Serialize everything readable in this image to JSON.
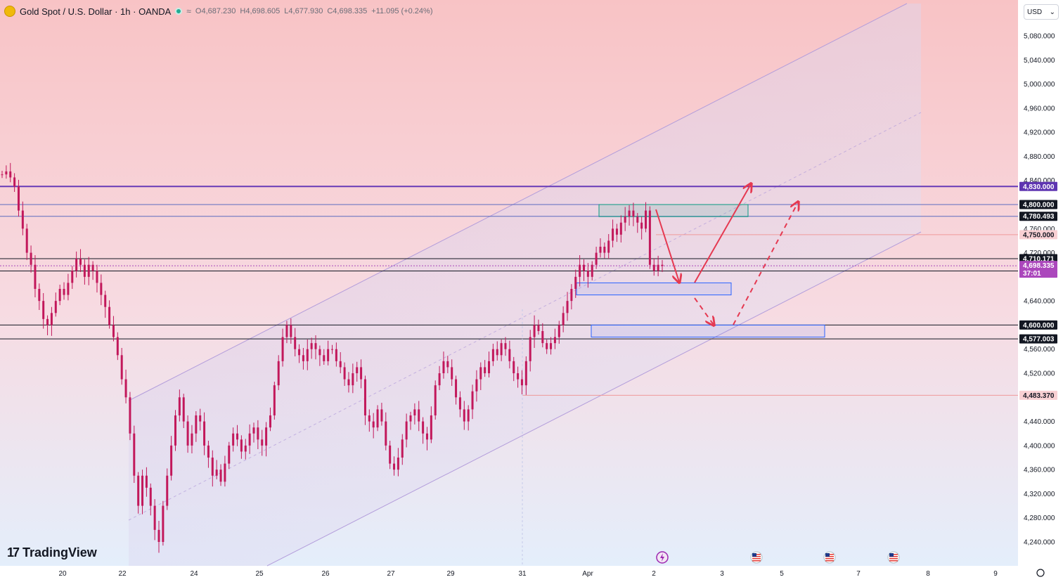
{
  "header": {
    "title": "Gold Spot / U.S. Dollar · 1h · OANDA",
    "o_label": "O",
    "o_value": "4,687.230",
    "h_label": "H",
    "h_value": "4,698.605",
    "l_label": "L",
    "l_value": "4,677.930",
    "c_label": "C",
    "c_value": "4,698.335",
    "change": "+11.095 (+0.24%)",
    "wave_glyph": "≈"
  },
  "currency_select": {
    "value": "USD",
    "chevron": "⌄"
  },
  "brand": {
    "logo_glyph": "17",
    "name": "TradingView"
  },
  "colors": {
    "candle": "#c2185b",
    "channel": "#b39ddb",
    "resistance_line": "#673ab7",
    "level_line": "#131722",
    "box_blue": "#2962ff",
    "box_green": "#089981",
    "arrow": "#e53951",
    "bg_top": "#f7c6c6",
    "bg_bottom": "#e8f0fb",
    "price_tag": "#131722",
    "pink_tag": "#f8d0d3",
    "current_tag": "#ab47bc"
  },
  "chart_data": {
    "type": "candlestick",
    "symbol": "XAUUSD",
    "timeframe": "1h",
    "y_ticks": [
      "5,080.000",
      "5,040.000",
      "5,000.000",
      "4,960.000",
      "4,920.000",
      "4,880.000",
      "4,840.000",
      "4,760.000",
      "4,720.000",
      "4,640.000",
      "4,560.000",
      "4,520.000",
      "4,440.000",
      "4,400.000",
      "4,360.000",
      "4,320.000",
      "4,280.000",
      "4,240.000"
    ],
    "ylim": [
      4215,
      5105
    ],
    "x_ticks": [
      "20",
      "22",
      "24",
      "25",
      "26",
      "27",
      "29",
      "31",
      "Apr",
      "2",
      "3",
      "5",
      "7",
      "8",
      "9"
    ],
    "price_tags": [
      {
        "label": "4,830.000",
        "value": 4830,
        "style": "purple"
      },
      {
        "label": "4,800.000",
        "value": 4800,
        "style": "dark"
      },
      {
        "label": "4,780.493",
        "value": 4780.493,
        "style": "dark"
      },
      {
        "label": "4,750.000",
        "value": 4750,
        "style": "pink"
      },
      {
        "label": "4,710.171",
        "value": 4710.171,
        "style": "dark"
      },
      {
        "label": "4,689.759",
        "value": 4689.759,
        "style": "dark"
      },
      {
        "label": "4,600.000",
        "value": 4600,
        "style": "dark"
      },
      {
        "label": "4,577.003",
        "value": 4577.003,
        "style": "dark"
      },
      {
        "label": "4,483.370",
        "value": 4483.37,
        "style": "pink"
      }
    ],
    "current_price": {
      "label": "4,698.335",
      "countdown": "37:01",
      "value": 4698.335
    },
    "horizontal_levels": [
      4830,
      4800,
      4780.493,
      4710.171,
      4689.759,
      4600,
      4577.003
    ],
    "close_series": [
      4850,
      4855,
      4845,
      4830,
      4790,
      4760,
      4720,
      4700,
      4660,
      4640,
      4610,
      4600,
      4620,
      4640,
      4660,
      4650,
      4670,
      4690,
      4710,
      4700,
      4680,
      4700,
      4690,
      4670,
      4650,
      4630,
      4600,
      4580,
      4550,
      4510,
      4480,
      4420,
      4350,
      4300,
      4350,
      4330,
      4300,
      4260,
      4240,
      4300,
      4350,
      4400,
      4450,
      4480,
      4440,
      4400,
      4420,
      4450,
      4440,
      4400,
      4380,
      4350,
      4360,
      4340,
      4370,
      4400,
      4420,
      4410,
      4390,
      4400,
      4420,
      4430,
      4410,
      4400,
      4430,
      4450,
      4500,
      4540,
      4580,
      4600,
      4580,
      4560,
      4550,
      4540,
      4560,
      4570,
      4560,
      4550,
      4540,
      4560,
      4560,
      4540,
      4530,
      4510,
      4500,
      4520,
      4530,
      4510,
      4450,
      4440,
      4430,
      4460,
      4440,
      4400,
      4370,
      4360,
      4380,
      4410,
      4440,
      4450,
      4460,
      4440,
      4420,
      4410,
      4450,
      4500,
      4520,
      4540,
      4530,
      4510,
      4480,
      4460,
      4440,
      4460,
      4490,
      4510,
      4530,
      4520,
      4540,
      4560,
      4550,
      4570,
      4560,
      4540,
      4520,
      4510,
      4500,
      4540,
      4580,
      4600,
      4590,
      4570,
      4560,
      4570,
      4580,
      4600,
      4620,
      4640,
      4660,
      4680,
      4700,
      4690,
      4680,
      4700,
      4720,
      4730,
      4720,
      4740,
      4760,
      4750,
      4770,
      4780,
      4790,
      4780,
      4770,
      4760,
      4790,
      4700,
      4690,
      4700,
      4698
    ]
  },
  "annotations": {
    "zones": [
      {
        "name": "supply-zone",
        "color": "green",
        "top": 4800,
        "bottom": 4780
      },
      {
        "name": "demand-zone-upper",
        "color": "blue",
        "top": 4670,
        "bottom": 4650
      },
      {
        "name": "demand-zone-lower",
        "color": "blue",
        "top": 4600,
        "bottom": 4580
      }
    ],
    "event_icons": [
      "lightning-event-icon",
      "us-flag-event-icon",
      "us-flag-event-icon",
      "us-flag-event-icon"
    ]
  }
}
